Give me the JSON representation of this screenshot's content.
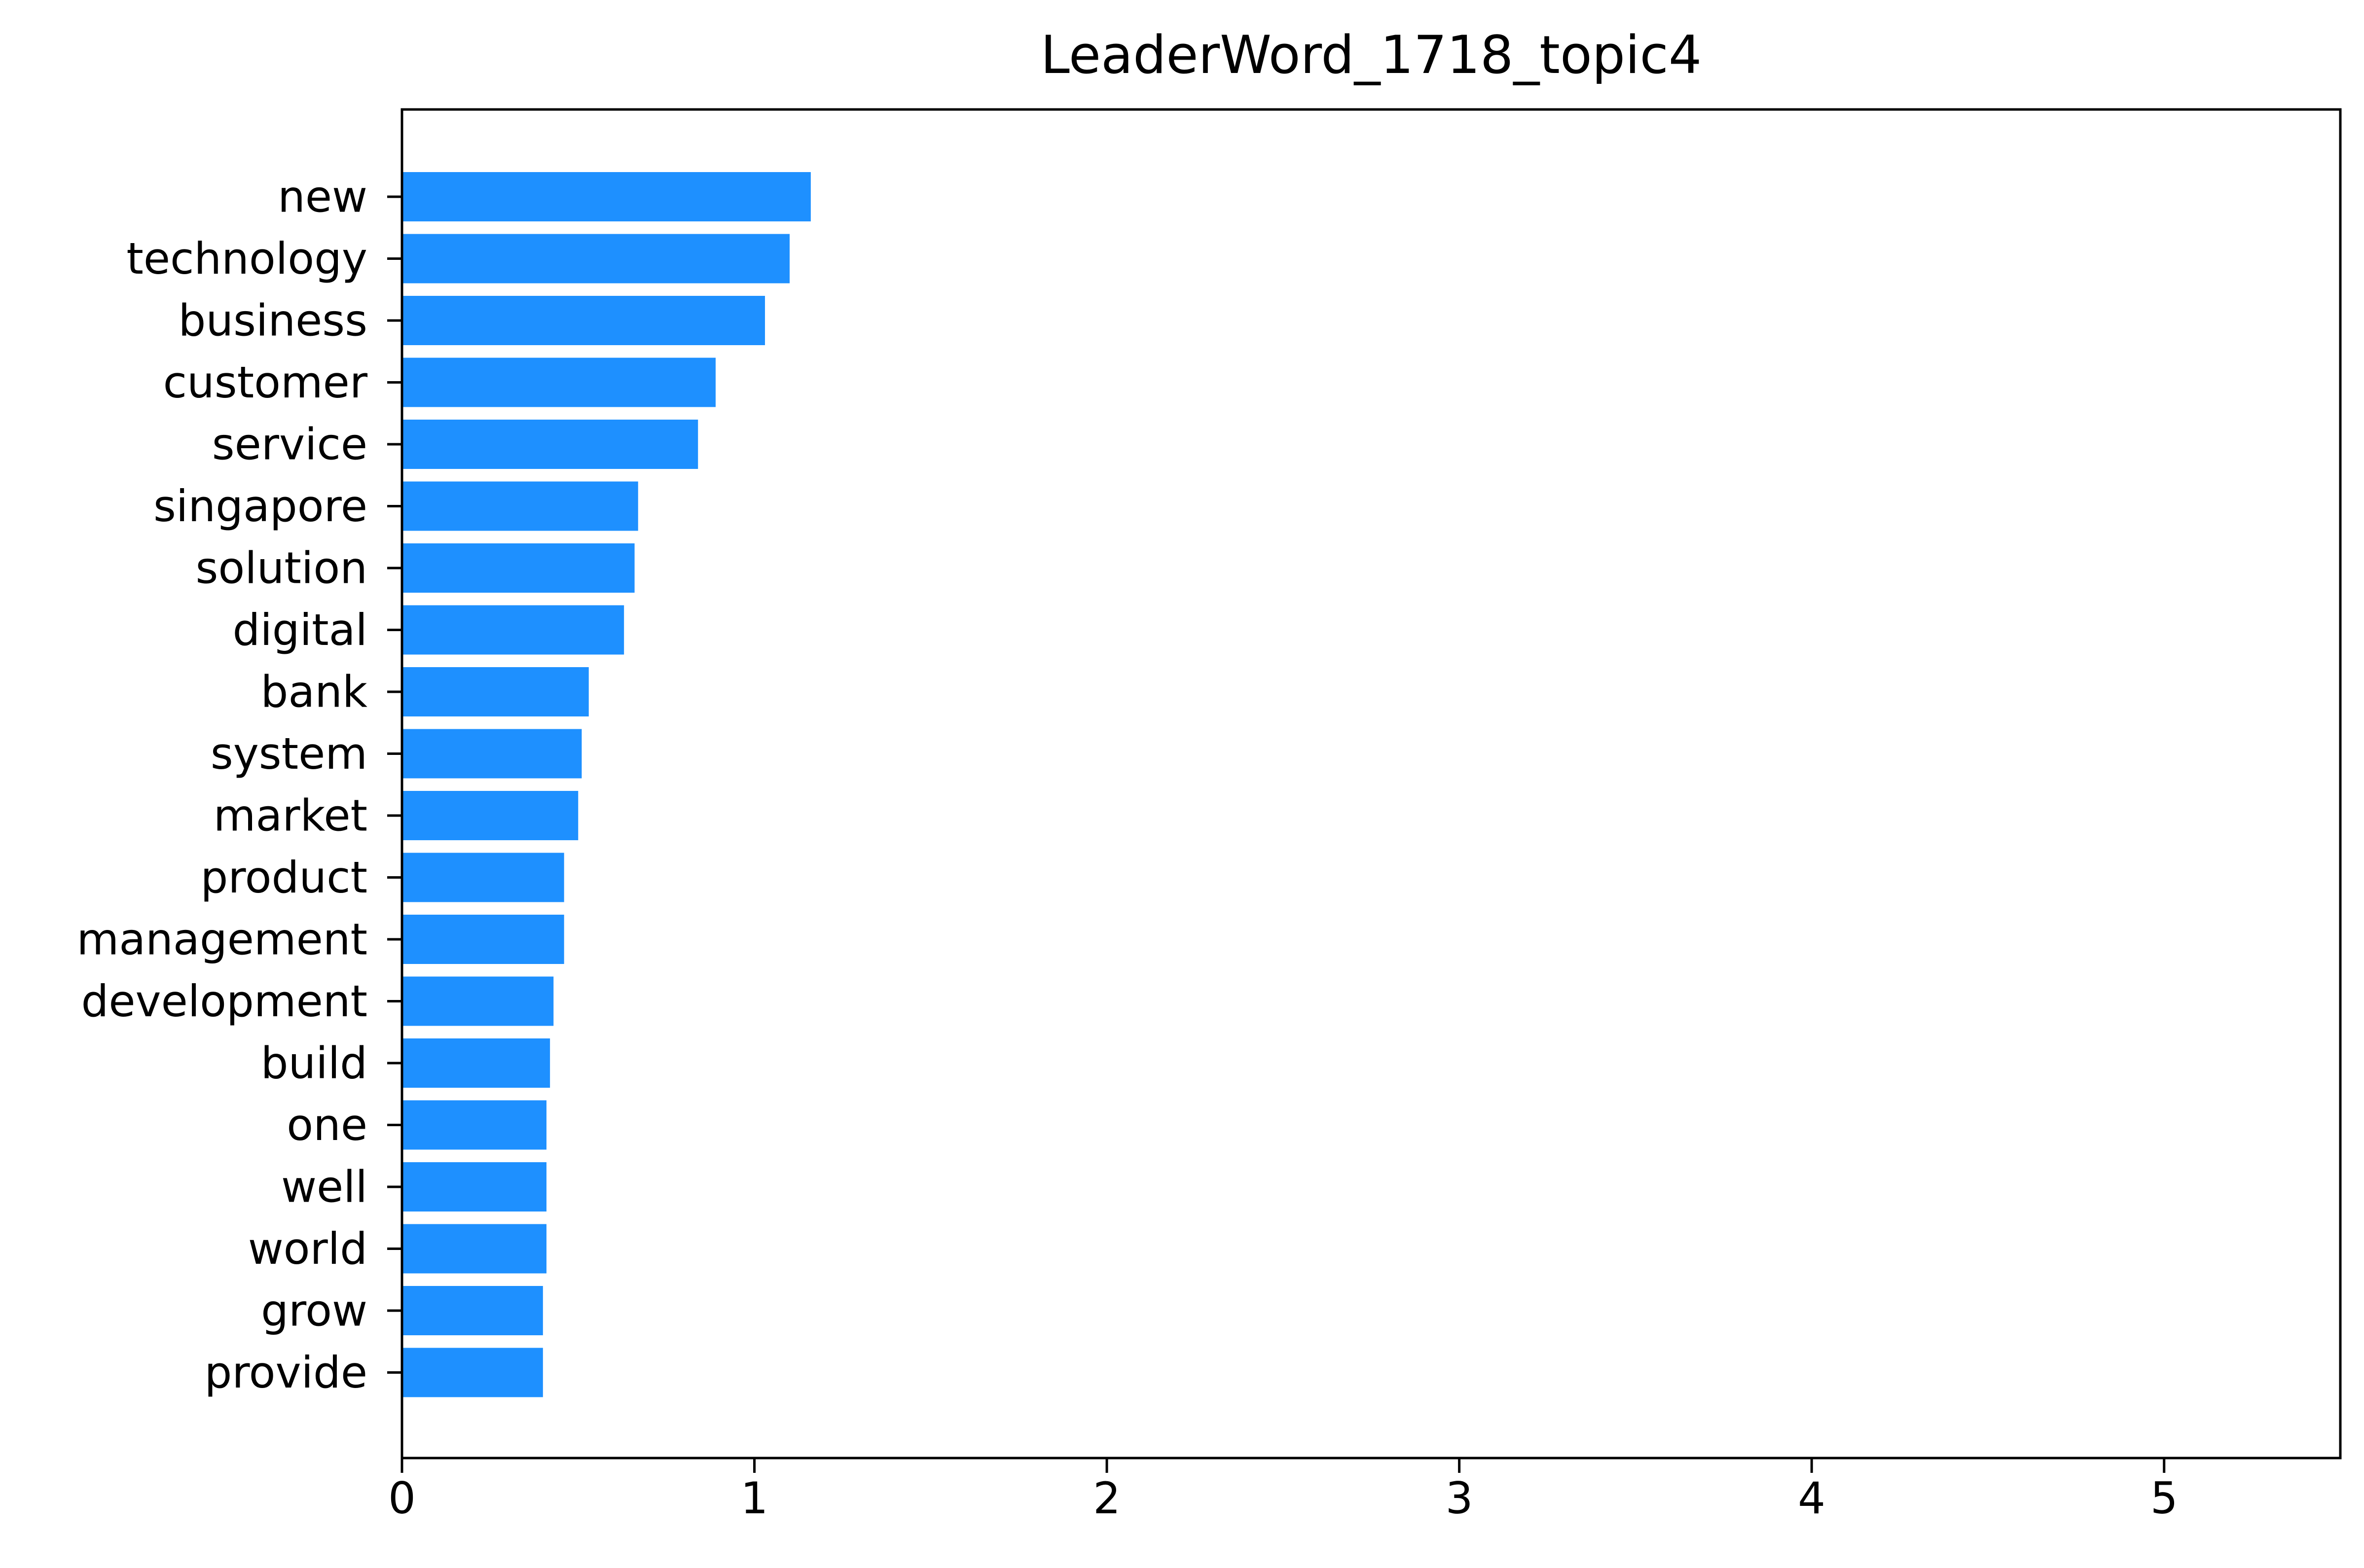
{
  "chart_data": {
    "type": "bar",
    "orientation": "horizontal",
    "title": "LeaderWord_1718_topic4",
    "xlabel": "",
    "ylabel": "",
    "xlim": [
      0,
      5.5
    ],
    "xticks": [
      "0",
      "1",
      "2",
      "3",
      "4",
      "5"
    ],
    "grid": false,
    "bar_color": "#1E90FF",
    "categories": [
      "new",
      "technology",
      "business",
      "customer",
      "service",
      "singapore",
      "solution",
      "digital",
      "bank",
      "system",
      "market",
      "product",
      "management",
      "development",
      "build",
      "one",
      "well",
      "world",
      "grow",
      "provide"
    ],
    "values": [
      1.16,
      1.1,
      1.03,
      0.89,
      0.84,
      0.67,
      0.66,
      0.63,
      0.53,
      0.51,
      0.5,
      0.46,
      0.46,
      0.43,
      0.42,
      0.41,
      0.41,
      0.41,
      0.4,
      0.4
    ]
  }
}
